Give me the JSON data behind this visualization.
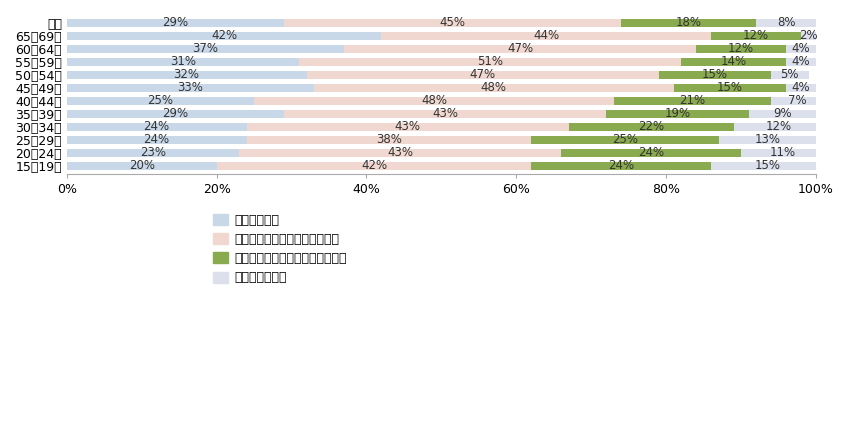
{
  "categories": [
    "総計",
    "65・69歳",
    "60・64歳",
    "55・59歳",
    "50・54歳",
    "45・49歳",
    "40・44歳",
    "35・39歳",
    "30・34歳",
    "25・29歳",
    "20・24歳",
    "15・19歳"
  ],
  "series": [
    {
      "label": "心配している",
      "color": "#c8d8e8",
      "values": [
        29,
        42,
        37,
        31,
        32,
        33,
        25,
        29,
        24,
        24,
        23,
        20
      ]
    },
    {
      "label": "どちらかというと心配している",
      "color": "#f0d8d0",
      "values": [
        45,
        44,
        47,
        51,
        47,
        48,
        48,
        43,
        43,
        38,
        43,
        42
      ]
    },
    {
      "label": "どちらかというと心配していない",
      "color": "#8aaa50",
      "values": [
        18,
        12,
        12,
        14,
        15,
        15,
        21,
        19,
        22,
        25,
        24,
        24
      ]
    },
    {
      "label": "心配していない",
      "color": "#dce0ec",
      "values": [
        8,
        2,
        4,
        4,
        5,
        4,
        7,
        9,
        12,
        13,
        11,
        15
      ]
    }
  ],
  "xlim": [
    0,
    100
  ],
  "xticks": [
    0,
    20,
    40,
    60,
    80,
    100
  ],
  "xticklabels": [
    "0%",
    "20%",
    "40%",
    "60%",
    "80%",
    "100%"
  ],
  "background_color": "#ffffff",
  "bar_height": 0.62,
  "fontsize_label": 8.5,
  "fontsize_tick": 9,
  "fontsize_legend": 9
}
